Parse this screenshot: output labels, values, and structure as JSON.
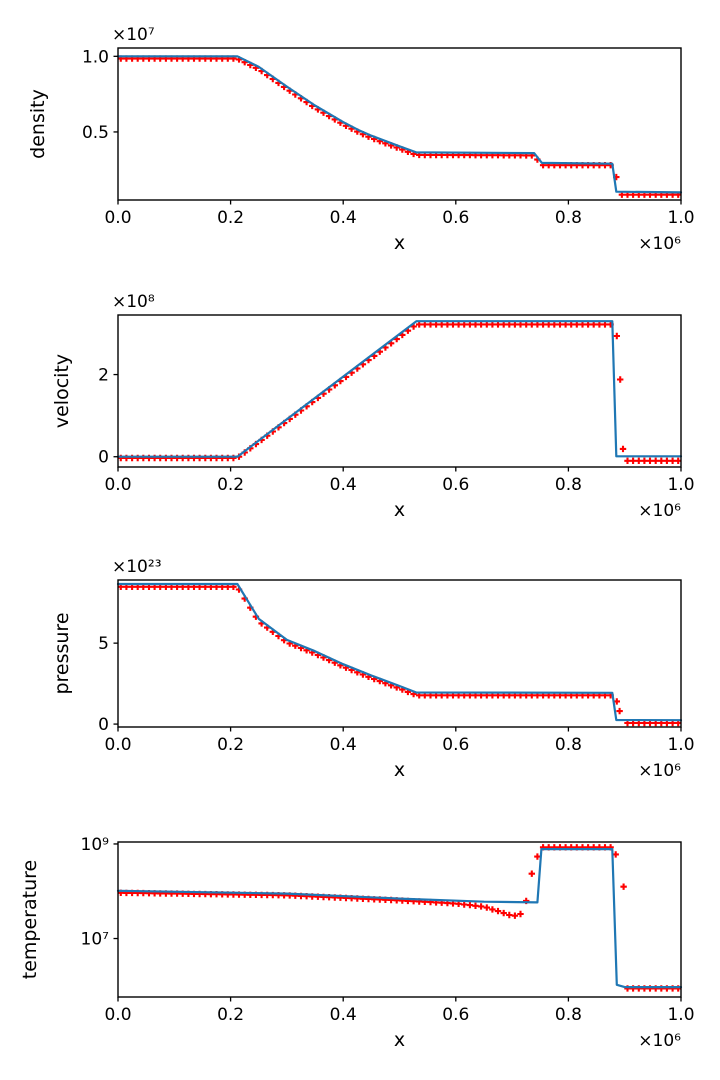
{
  "figure": {
    "background": "#ffffff",
    "axis_color": "#000000",
    "line_color": "#1f77b4",
    "marker_color": "#ff0000",
    "xaxis": {
      "label": "x",
      "offset_label": "×10⁶",
      "unit_multiplier": 1000000,
      "lim": [
        0.0,
        1.0
      ],
      "ticks": [
        {
          "v": 0.0,
          "label": "0.0"
        },
        {
          "v": 0.2,
          "label": "0.2"
        },
        {
          "v": 0.4,
          "label": "0.4"
        },
        {
          "v": 0.6,
          "label": "0.6"
        },
        {
          "v": 0.8,
          "label": "0.8"
        },
        {
          "v": 1.0,
          "label": "1.0"
        }
      ]
    }
  },
  "chart_data": [
    {
      "type": "line",
      "name": "density",
      "ylabel": "density",
      "offset_label": "×10⁷",
      "y_unit_multiplier": 10000000.0,
      "yscale": "linear",
      "ylim": [
        0.05,
        1.055
      ],
      "yticks": [
        {
          "v": 0.5,
          "label": "0.5"
        },
        {
          "v": 1.0,
          "label": "1.0"
        }
      ],
      "series": [
        {
          "name": "solution-line",
          "style": "line",
          "points": [
            [
              0,
              1.0
            ],
            [
              0.212,
              1.0
            ],
            [
              0.25,
              0.93
            ],
            [
              0.3,
              0.8
            ],
            [
              0.35,
              0.675
            ],
            [
              0.4,
              0.565
            ],
            [
              0.426,
              0.515
            ],
            [
              0.45,
              0.475
            ],
            [
              0.5,
              0.405
            ],
            [
              0.53,
              0.365
            ],
            [
              0.739,
              0.36
            ],
            [
              0.753,
              0.295
            ],
            [
              0.878,
              0.29
            ],
            [
              0.885,
              0.105
            ],
            [
              1.0,
              0.1
            ]
          ]
        },
        {
          "name": "simulation-markers",
          "style": "plus",
          "n": 100,
          "curve": [
            [
              0,
              0.985
            ],
            [
              0.212,
              0.985
            ],
            [
              0.25,
              0.915
            ],
            [
              0.3,
              0.785
            ],
            [
              0.35,
              0.66
            ],
            [
              0.4,
              0.55
            ],
            [
              0.426,
              0.5
            ],
            [
              0.45,
              0.46
            ],
            [
              0.5,
              0.39
            ],
            [
              0.53,
              0.348
            ],
            [
              0.739,
              0.345
            ],
            [
              0.753,
              0.28
            ],
            [
              0.878,
              0.28
            ],
            [
              0.886,
              0.19
            ],
            [
              0.894,
              0.085
            ],
            [
              1.0,
              0.085
            ]
          ],
          "skip": [],
          "extra": []
        }
      ]
    },
    {
      "type": "line",
      "name": "velocity",
      "ylabel": "velocity",
      "offset_label": "×10⁸",
      "y_unit_multiplier": 100000000.0,
      "yscale": "linear",
      "ylim": [
        -0.25,
        3.45
      ],
      "yticks": [
        {
          "v": 0,
          "label": "0"
        },
        {
          "v": 2,
          "label": "2"
        }
      ],
      "series": [
        {
          "name": "solution-line",
          "style": "line",
          "points": [
            [
              0,
              0.0
            ],
            [
              0.212,
              0.0
            ],
            [
              0.53,
              3.3
            ],
            [
              0.878,
              3.3
            ],
            [
              0.885,
              0.01
            ],
            [
              1.0,
              0.01
            ]
          ]
        },
        {
          "name": "simulation-markers",
          "style": "plus",
          "n": 100,
          "curve": [
            [
              0,
              -0.03
            ],
            [
              0.212,
              -0.03
            ],
            [
              0.53,
              3.22
            ],
            [
              0.879,
              3.22
            ],
            [
              0.903,
              -0.1
            ],
            [
              1.0,
              -0.1
            ]
          ],
          "skip": [
            [
              0.881,
              0.9025
            ]
          ],
          "extra": [
            [
              0.886,
              2.94
            ],
            [
              0.892,
              1.88
            ],
            [
              0.897,
              0.19
            ]
          ]
        }
      ]
    },
    {
      "type": "line",
      "name": "pressure",
      "ylabel": "pressure",
      "offset_label": "×10²³",
      "y_unit_multiplier": 1e+23,
      "yscale": "linear",
      "ylim": [
        -0.18,
        8.9
      ],
      "yticks": [
        {
          "v": 0,
          "label": "0"
        },
        {
          "v": 5,
          "label": "5"
        }
      ],
      "series": [
        {
          "name": "solution-line",
          "style": "line",
          "points": [
            [
              0,
              8.65
            ],
            [
              0.212,
              8.65
            ],
            [
              0.25,
              6.5
            ],
            [
              0.3,
              5.2
            ],
            [
              0.35,
              4.5
            ],
            [
              0.4,
              3.7
            ],
            [
              0.45,
              3.0
            ],
            [
              0.5,
              2.35
            ],
            [
              0.53,
              1.95
            ],
            [
              0.878,
              1.93
            ],
            [
              0.885,
              0.25
            ],
            [
              1.0,
              0.24
            ]
          ]
        },
        {
          "name": "simulation-markers",
          "style": "plus",
          "n": 100,
          "curve": [
            [
              0,
              8.48
            ],
            [
              0.212,
              8.48
            ],
            [
              0.25,
              6.35
            ],
            [
              0.3,
              5.05
            ],
            [
              0.35,
              4.35
            ],
            [
              0.4,
              3.55
            ],
            [
              0.45,
              2.85
            ],
            [
              0.5,
              2.2
            ],
            [
              0.53,
              1.78
            ],
            [
              0.879,
              1.78
            ],
            [
              0.897,
              0.07
            ],
            [
              1.0,
              0.07
            ]
          ],
          "skip": [
            [
              0.88,
              0.8965
            ]
          ],
          "extra": [
            [
              0.886,
              1.4
            ],
            [
              0.891,
              0.8
            ]
          ]
        }
      ]
    },
    {
      "type": "line",
      "name": "temperature",
      "ylabel": "temperature",
      "offset_label": "",
      "y_unit_multiplier": 1,
      "yscale": "log",
      "ylim": [
        580000.0,
        1100000000.0
      ],
      "yticks": [
        {
          "v": 10000000.0,
          "label": "10⁷"
        },
        {
          "v": 1000000000.0,
          "label": "10⁹"
        }
      ],
      "series": [
        {
          "name": "solution-line",
          "style": "line",
          "points": [
            [
              0,
              102000000.0
            ],
            [
              0.3,
              89000000.0
            ],
            [
              0.5,
              70000000.0
            ],
            [
              0.65,
              60000000.0
            ],
            [
              0.745,
              58000000.0
            ],
            [
              0.752,
              780000000.0
            ],
            [
              0.878,
              780000000.0
            ],
            [
              0.886,
              1050000.0
            ],
            [
              0.9,
              940000.0
            ],
            [
              1.0,
              940000.0
            ]
          ]
        },
        {
          "name": "simulation-markers",
          "style": "plus",
          "n": 100,
          "curve": [
            [
              0,
              93000000.0
            ],
            [
              0.3,
              82000000.0
            ],
            [
              0.5,
              64000000.0
            ],
            [
              0.6,
              55000000.0
            ],
            [
              0.65,
              47000000.0
            ],
            [
              0.675,
              38000000.0
            ],
            [
              0.7,
              30000000.0
            ],
            [
              0.712,
              31000000.0
            ],
            [
              0.722,
              38000000.0
            ],
            [
              0.731,
              170000000.0
            ],
            [
              0.741,
              380000000.0
            ],
            [
              0.746,
              590000000.0
            ],
            [
              0.752,
              850000000.0
            ],
            [
              0.878,
              850000000.0
            ],
            [
              0.904,
              880000.0
            ],
            [
              1.0,
              880000.0
            ]
          ],
          "skip": [
            [
              0.879,
              0.9035
            ]
          ],
          "extra": [
            [
              0.884,
              600000000.0
            ],
            [
              0.898,
              125000000.0
            ]
          ]
        }
      ]
    }
  ]
}
